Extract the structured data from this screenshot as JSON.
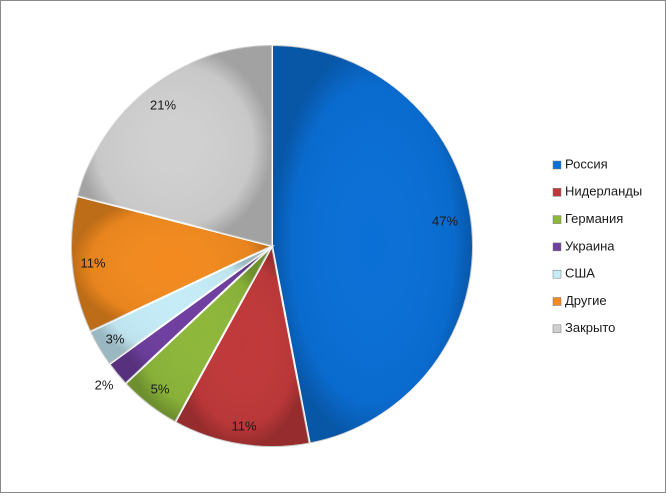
{
  "chart_data": {
    "type": "pie",
    "title": "",
    "slices": [
      {
        "label": "Россия",
        "value": 47,
        "display": "47%",
        "color": "#0a6fd6"
      },
      {
        "label": "Нидерланды",
        "value": 11,
        "display": "11%",
        "color": "#c0393a"
      },
      {
        "label": "Германия",
        "value": 5,
        "display": "5%",
        "color": "#8db73b"
      },
      {
        "label": "Украина",
        "value": 2,
        "display": "2%",
        "color": "#6f3fa0"
      },
      {
        "label": "США",
        "value": 3,
        "display": "3%",
        "color": "#c5ecf7"
      },
      {
        "label": "Другие",
        "value": 11,
        "display": "11%",
        "color": "#f28a1f"
      },
      {
        "label": "Закрыто",
        "value": 21,
        "display": "21%",
        "color": "#d0d0d0"
      }
    ],
    "start": "top, clockwise",
    "legend": {
      "position": "right"
    }
  }
}
